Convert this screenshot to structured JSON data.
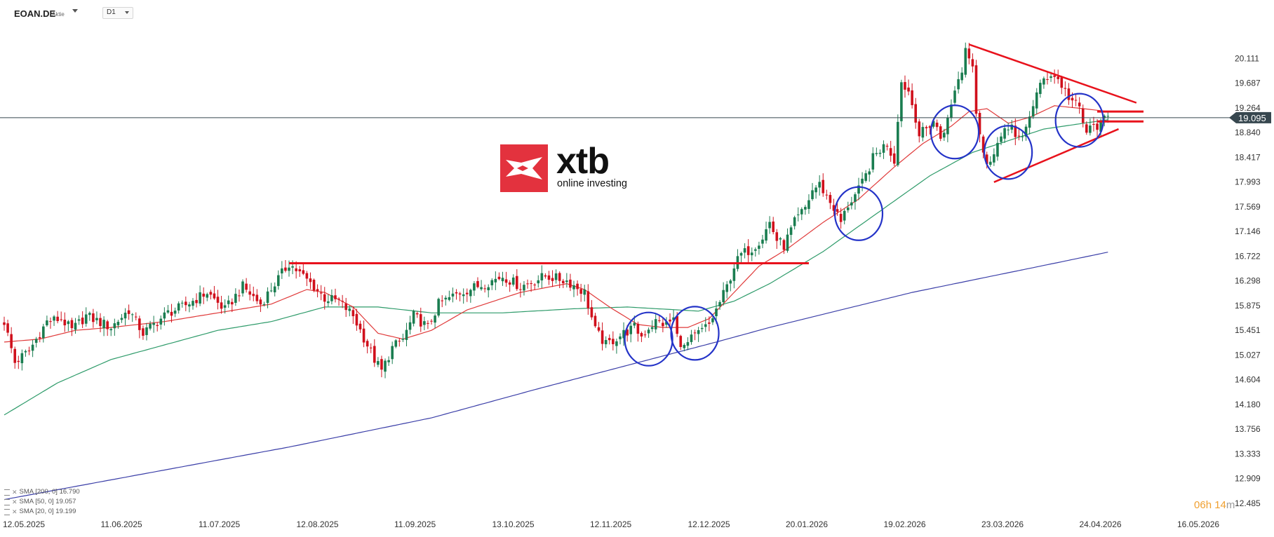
{
  "header": {
    "symbol": "EOAN.DE",
    "symbol_type": "Aktie",
    "timeframe": "D1"
  },
  "logo": {
    "word": "xtb",
    "tagline": "online investing"
  },
  "timer": {
    "hours": "06",
    "hours_unit": "h",
    "minutes": "14",
    "minutes_unit": "m"
  },
  "legend": [
    {
      "label": "SMA [200, 0] 16.790"
    },
    {
      "label": "SMA [50, 0] 19.057"
    },
    {
      "label": "SMA [20, 0] 19.199"
    }
  ],
  "colors": {
    "up": "#1a7d50",
    "down": "#d0101c",
    "sma20": "#e03a3a",
    "sma50": "#2e9b6a",
    "sma200": "#3b3fa8",
    "annotation": "#e8121c",
    "circle": "#2433c8",
    "price_tag_bg": "#37474f"
  },
  "chart_data": {
    "type": "candlestick",
    "symbol": "EOAN.DE",
    "timeframe": "D1",
    "ylim": [
      12.485,
      20.535
    ],
    "y_ticks": [
      "20.111",
      "19.687",
      "19.264",
      "18.840",
      "18.417",
      "17.993",
      "17.569",
      "17.146",
      "16.722",
      "16.298",
      "15.875",
      "15.451",
      "15.027",
      "14.604",
      "14.180",
      "13.756",
      "13.333",
      "12.909",
      "12.485"
    ],
    "x_ticks": [
      "12.05.2025",
      "11.06.2025",
      "11.07.2025",
      "12.08.2025",
      "11.09.2025",
      "13.10.2025",
      "12.11.2025",
      "12.12.2025",
      "20.01.2026",
      "19.02.2026",
      "23.03.2026",
      "24.04.2026",
      "16.05.2026"
    ],
    "current_price": "19.095",
    "price_path": [
      [
        0,
        15.6
      ],
      [
        3,
        14.9
      ],
      [
        7,
        15.1
      ],
      [
        12,
        15.6
      ],
      [
        16,
        15.65
      ],
      [
        19,
        15.45
      ],
      [
        23,
        15.7
      ],
      [
        30,
        15.5
      ],
      [
        35,
        15.8
      ],
      [
        39,
        15.4
      ],
      [
        46,
        15.75
      ],
      [
        50,
        15.85
      ],
      [
        57,
        16.1
      ],
      [
        62,
        15.8
      ],
      [
        67,
        16.2
      ],
      [
        72,
        15.9
      ],
      [
        80,
        16.6
      ],
      [
        87,
        16.2
      ],
      [
        90,
        16.0
      ],
      [
        94,
        15.95
      ],
      [
        98,
        15.7
      ],
      [
        100,
        15.45
      ],
      [
        104,
        14.95
      ],
      [
        106,
        14.75
      ],
      [
        109,
        15.15
      ],
      [
        112,
        15.3
      ],
      [
        115,
        15.7
      ],
      [
        119,
        15.5
      ],
      [
        122,
        15.9
      ],
      [
        128,
        16.1
      ],
      [
        135,
        16.25
      ],
      [
        140,
        16.38
      ],
      [
        145,
        16.2
      ],
      [
        152,
        16.38
      ],
      [
        158,
        16.3
      ],
      [
        163,
        16.1
      ],
      [
        166,
        15.45
      ],
      [
        169,
        15.2
      ],
      [
        171,
        15.28
      ],
      [
        174,
        15.4
      ],
      [
        177,
        15.5
      ],
      [
        179,
        15.35
      ],
      [
        181,
        15.5
      ],
      [
        183,
        15.6
      ],
      [
        186,
        15.55
      ],
      [
        188,
        15.65
      ],
      [
        189,
        15.35
      ],
      [
        191,
        15.15
      ],
      [
        193,
        15.3
      ],
      [
        196,
        15.45
      ],
      [
        198,
        15.55
      ],
      [
        200,
        15.8
      ],
      [
        203,
        16.2
      ],
      [
        205,
        16.55
      ],
      [
        207,
        16.75
      ],
      [
        210,
        16.85
      ],
      [
        213,
        17.05
      ],
      [
        215,
        17.3
      ],
      [
        217,
        17.0
      ],
      [
        219,
        16.9
      ],
      [
        222,
        17.3
      ],
      [
        225,
        17.55
      ],
      [
        227,
        17.85
      ],
      [
        229,
        17.95
      ],
      [
        231,
        17.75
      ],
      [
        233,
        17.55
      ],
      [
        235,
        17.3
      ],
      [
        237,
        17.6
      ],
      [
        240,
        17.85
      ],
      [
        242,
        18.1
      ],
      [
        244,
        18.4
      ],
      [
        246,
        18.55
      ],
      [
        248,
        18.65
      ],
      [
        250,
        18.35
      ],
      [
        251,
        19.1
      ],
      [
        252,
        19.7
      ],
      [
        254,
        19.55
      ],
      [
        256,
        19.1
      ],
      [
        257,
        18.8
      ],
      [
        259,
        18.9
      ],
      [
        261,
        19.05
      ],
      [
        263,
        18.75
      ],
      [
        265,
        19.05
      ],
      [
        266,
        19.3
      ],
      [
        267,
        19.6
      ],
      [
        269,
        19.9
      ],
      [
        270,
        20.3
      ],
      [
        272,
        20.05
      ],
      [
        273,
        19.2
      ],
      [
        274,
        18.85
      ],
      [
        275,
        18.5
      ],
      [
        276,
        18.25
      ],
      [
        278,
        18.55
      ],
      [
        280,
        18.75
      ],
      [
        282,
        18.9
      ],
      [
        283,
        19.05
      ],
      [
        284,
        18.75
      ],
      [
        286,
        18.7
      ],
      [
        288,
        19.15
      ],
      [
        290,
        19.5
      ],
      [
        292,
        19.75
      ],
      [
        294,
        19.85
      ],
      [
        296,
        19.75
      ],
      [
        298,
        19.55
      ],
      [
        299,
        19.45
      ],
      [
        300,
        19.38
      ],
      [
        302,
        19.25
      ],
      [
        303,
        19.0
      ],
      [
        304,
        18.85
      ],
      [
        306,
        18.95
      ],
      [
        308,
        18.97
      ],
      [
        309,
        19.05
      ],
      [
        310,
        19.1
      ]
    ],
    "sma20_anchors": [
      [
        0,
        15.25
      ],
      [
        10,
        15.3
      ],
      [
        20,
        15.45
      ],
      [
        30,
        15.5
      ],
      [
        45,
        15.6
      ],
      [
        60,
        15.75
      ],
      [
        75,
        15.9
      ],
      [
        85,
        16.15
      ],
      [
        90,
        16.1
      ],
      [
        98,
        15.85
      ],
      [
        105,
        15.4
      ],
      [
        112,
        15.3
      ],
      [
        120,
        15.45
      ],
      [
        130,
        15.8
      ],
      [
        145,
        16.1
      ],
      [
        158,
        16.25
      ],
      [
        163,
        16.15
      ],
      [
        170,
        15.85
      ],
      [
        178,
        15.55
      ],
      [
        185,
        15.5
      ],
      [
        192,
        15.5
      ],
      [
        198,
        15.65
      ],
      [
        205,
        16.1
      ],
      [
        212,
        16.55
      ],
      [
        220,
        16.85
      ],
      [
        230,
        17.3
      ],
      [
        240,
        17.7
      ],
      [
        250,
        18.25
      ],
      [
        258,
        18.65
      ],
      [
        266,
        18.95
      ],
      [
        271,
        19.2
      ],
      [
        276,
        19.25
      ],
      [
        282,
        19.0
      ],
      [
        288,
        19.1
      ],
      [
        295,
        19.3
      ],
      [
        303,
        19.25
      ],
      [
        310,
        19.2
      ]
    ],
    "sma50_anchors": [
      [
        0,
        14.0
      ],
      [
        15,
        14.55
      ],
      [
        30,
        14.95
      ],
      [
        45,
        15.2
      ],
      [
        60,
        15.45
      ],
      [
        75,
        15.6
      ],
      [
        90,
        15.85
      ],
      [
        105,
        15.85
      ],
      [
        120,
        15.75
      ],
      [
        140,
        15.75
      ],
      [
        160,
        15.82
      ],
      [
        175,
        15.85
      ],
      [
        195,
        15.78
      ],
      [
        205,
        15.95
      ],
      [
        215,
        16.25
      ],
      [
        230,
        16.8
      ],
      [
        245,
        17.45
      ],
      [
        260,
        18.1
      ],
      [
        272,
        18.5
      ],
      [
        282,
        18.7
      ],
      [
        292,
        18.9
      ],
      [
        310,
        19.06
      ]
    ],
    "sma200_anchors": [
      [
        0,
        12.55
      ],
      [
        40,
        13.0
      ],
      [
        80,
        13.45
      ],
      [
        120,
        13.95
      ],
      [
        150,
        14.45
      ],
      [
        175,
        14.85
      ],
      [
        200,
        15.25
      ],
      [
        215,
        15.5
      ],
      [
        235,
        15.8
      ],
      [
        255,
        16.1
      ],
      [
        275,
        16.35
      ],
      [
        295,
        16.6
      ],
      [
        310,
        16.79
      ]
    ],
    "horizontal_level": {
      "value": 16.6,
      "from": 80,
      "to": 226
    },
    "triangle": {
      "upper": [
        [
          271,
          20.35
        ],
        [
          318,
          19.35
        ]
      ],
      "lower": [
        [
          278,
          17.99
        ],
        [
          313,
          18.9
        ]
      ],
      "arrows": [
        19.2,
        19.03
      ]
    },
    "highlight_circles": [
      {
        "x": 181,
        "y": 15.3
      },
      {
        "x": 194,
        "y": 15.4
      },
      {
        "x": 240,
        "y": 17.45
      },
      {
        "x": 267,
        "y": 18.85
      },
      {
        "x": 282,
        "y": 18.5
      },
      {
        "x": 302,
        "y": 19.05
      }
    ]
  }
}
